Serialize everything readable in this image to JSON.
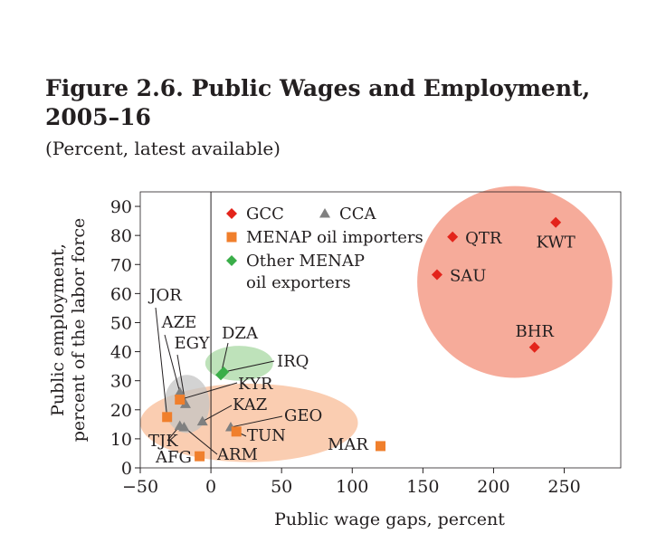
{
  "title_line1": "Figure 2.6. Public Wages and Employment,",
  "title_line2": "2005–16",
  "subtitle": "(Percent, latest available)",
  "chart_data": {
    "type": "scatter",
    "xlabel": "Public wage gaps, percent",
    "ylabel_line1": "Public employment,",
    "ylabel_line2": "percent of the labor force",
    "xlim": [
      -50,
      290
    ],
    "ylim": [
      0,
      95
    ],
    "xticks": [
      -50,
      0,
      50,
      100,
      150,
      200,
      250
    ],
    "yticks": [
      0,
      10,
      20,
      30,
      40,
      50,
      60,
      70,
      80,
      90
    ],
    "x_tick_labels": [
      "−50",
      "0",
      "50",
      "100",
      "150",
      "200",
      "250"
    ],
    "grid": false,
    "legend_position": "top-left",
    "series": [
      {
        "name": "GCC",
        "marker": "diamond",
        "color": "#e3241b",
        "points": [
          {
            "label": "KWT",
            "x": 244,
            "y": 84.5
          },
          {
            "label": "QTR",
            "x": 171,
            "y": 79.5
          },
          {
            "label": "SAU",
            "x": 160,
            "y": 66.5
          },
          {
            "label": "BHR",
            "x": 229,
            "y": 41.5
          }
        ]
      },
      {
        "name": "CCA",
        "marker": "triangle",
        "color": "#808080",
        "points": [
          {
            "label": "AZE",
            "x": -22,
            "y": 26
          },
          {
            "label": "EGY",
            "x": -18,
            "y": 22
          },
          {
            "label": "KAZ",
            "x": -6,
            "y": 16
          },
          {
            "label": "GEO",
            "x": 14,
            "y": 14
          },
          {
            "label": "TJK",
            "x": -22,
            "y": 14.5
          },
          {
            "label": "ARM",
            "x": -19,
            "y": 14
          }
        ]
      },
      {
        "name": "MENAP oil importers",
        "marker": "square",
        "color": "#f07f2c",
        "points": [
          {
            "label": "JOR",
            "x": -31,
            "y": 17.5
          },
          {
            "label": "KYR",
            "x": -22,
            "y": 23.5
          },
          {
            "label": "TUN",
            "x": 18,
            "y": 12.5
          },
          {
            "label": "AFG",
            "x": -8,
            "y": 4
          },
          {
            "label": "MAR",
            "x": 120,
            "y": 7.5
          }
        ]
      },
      {
        "name": "Other MENAP oil exporters",
        "legend_line1": "Other MENAP",
        "legend_line2": "oil exporters",
        "marker": "diamond",
        "color": "#3aae49",
        "points": [
          {
            "label": "DZA",
            "x": 7,
            "y": 32
          },
          {
            "label": "IRQ",
            "x": 9,
            "y": 33
          }
        ]
      }
    ],
    "ellipses": [
      {
        "group": "GCC",
        "cx": 215,
        "cy": 64,
        "rx": 69,
        "ry": 33,
        "color": "#f5a28f"
      },
      {
        "group": "MENAP oil importers",
        "cx": 27,
        "cy": 15.5,
        "rx": 77,
        "ry": 13.5,
        "color": "#f9c8a8"
      },
      {
        "group": "Other MENAP oil exporters",
        "cx": 20,
        "cy": 36,
        "rx": 24,
        "ry": 6,
        "color": "#b7dfb2"
      },
      {
        "group": "CCA",
        "cx": -17,
        "cy": 22,
        "rx": 16,
        "ry": 10,
        "color": "#c4c4c4"
      }
    ]
  }
}
